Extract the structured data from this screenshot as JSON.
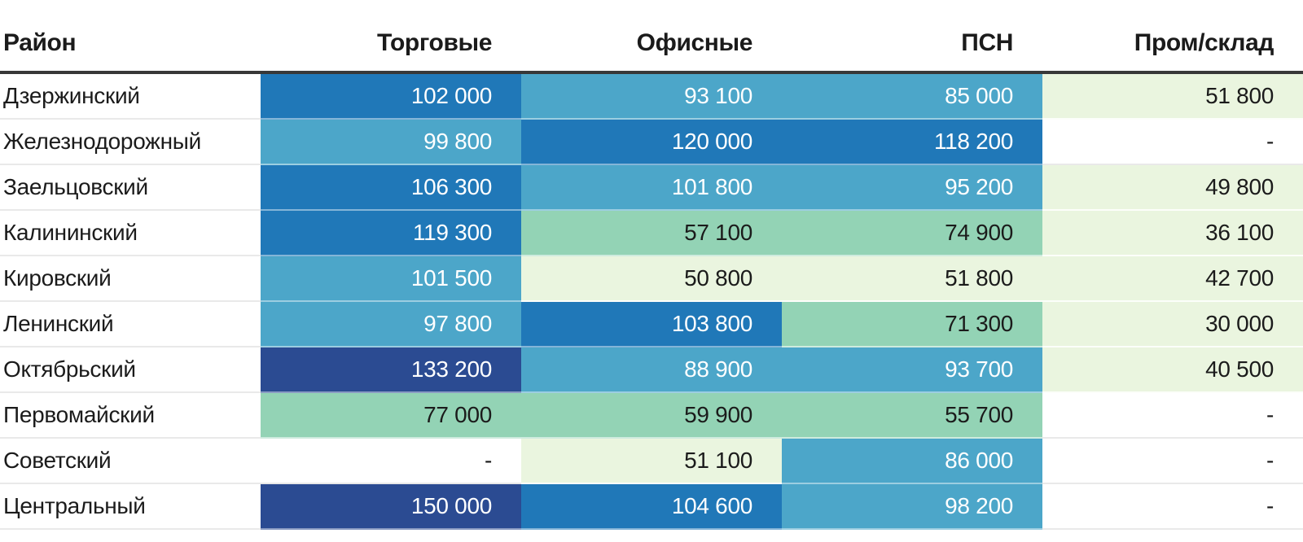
{
  "colors": {
    "navy": "#2b4b92",
    "dark_blue": "#2078b8",
    "mid_blue": "#4ca6c9",
    "green": "#93d3b5",
    "light_green": "#eaf5df",
    "header_border": "#383838",
    "row_divider": "#e9e9e9",
    "text_dark": "#1b1b1b",
    "text_light": "#ffffff"
  },
  "table": {
    "empty_value": "-",
    "columns": [
      {
        "key": "district",
        "label": "Район"
      },
      {
        "key": "retail",
        "label": "Торговые"
      },
      {
        "key": "office",
        "label": "Офисные"
      },
      {
        "key": "psn",
        "label": "ПСН"
      },
      {
        "key": "industrial",
        "label": "Пром/склад"
      }
    ],
    "rows": [
      {
        "district": "Дзержинский",
        "cells": [
          {
            "value": "102 000",
            "tone": "dark-blue"
          },
          {
            "value": "93 100",
            "tone": "mid-blue"
          },
          {
            "value": "85 000",
            "tone": "mid-blue"
          },
          {
            "value": "51 800",
            "tone": "light-green"
          }
        ]
      },
      {
        "district": "Железнодорожный",
        "cells": [
          {
            "value": "99 800",
            "tone": "mid-blue"
          },
          {
            "value": "120 000",
            "tone": "dark-blue"
          },
          {
            "value": "118 200",
            "tone": "dark-blue"
          },
          {
            "value": "-",
            "tone": "none"
          }
        ]
      },
      {
        "district": "Заельцовский",
        "cells": [
          {
            "value": "106 300",
            "tone": "dark-blue"
          },
          {
            "value": "101 800",
            "tone": "mid-blue"
          },
          {
            "value": "95 200",
            "tone": "mid-blue"
          },
          {
            "value": "49 800",
            "tone": "light-green"
          }
        ]
      },
      {
        "district": "Калининский",
        "cells": [
          {
            "value": "119 300",
            "tone": "dark-blue"
          },
          {
            "value": "57 100",
            "tone": "green"
          },
          {
            "value": "74 900",
            "tone": "green"
          },
          {
            "value": "36 100",
            "tone": "light-green"
          }
        ]
      },
      {
        "district": "Кировский",
        "cells": [
          {
            "value": "101 500",
            "tone": "mid-blue"
          },
          {
            "value": "50 800",
            "tone": "light-green"
          },
          {
            "value": "51 800",
            "tone": "light-green"
          },
          {
            "value": "42 700",
            "tone": "light-green"
          }
        ]
      },
      {
        "district": "Ленинский",
        "cells": [
          {
            "value": "97 800",
            "tone": "mid-blue"
          },
          {
            "value": "103 800",
            "tone": "dark-blue"
          },
          {
            "value": "71 300",
            "tone": "green"
          },
          {
            "value": "30 000",
            "tone": "light-green"
          }
        ]
      },
      {
        "district": "Октябрьский",
        "cells": [
          {
            "value": "133 200",
            "tone": "navy"
          },
          {
            "value": "88 900",
            "tone": "mid-blue"
          },
          {
            "value": "93 700",
            "tone": "mid-blue"
          },
          {
            "value": "40 500",
            "tone": "light-green"
          }
        ]
      },
      {
        "district": "Первомайский",
        "cells": [
          {
            "value": "77 000",
            "tone": "green"
          },
          {
            "value": "59 900",
            "tone": "green"
          },
          {
            "value": "55 700",
            "tone": "green"
          },
          {
            "value": "-",
            "tone": "none"
          }
        ]
      },
      {
        "district": "Советский",
        "cells": [
          {
            "value": "-",
            "tone": "none"
          },
          {
            "value": "51 100",
            "tone": "light-green"
          },
          {
            "value": "86 000",
            "tone": "mid-blue"
          },
          {
            "value": "-",
            "tone": "none"
          }
        ]
      },
      {
        "district": "Центральный",
        "cells": [
          {
            "value": "150 000",
            "tone": "navy"
          },
          {
            "value": "104 600",
            "tone": "dark-blue"
          },
          {
            "value": "98 200",
            "tone": "mid-blue"
          },
          {
            "value": "-",
            "tone": "none"
          }
        ]
      }
    ]
  },
  "chart_data": {
    "type": "heatmap",
    "title": "",
    "categories": [
      "Дзержинский",
      "Железнодорожный",
      "Заельцовский",
      "Калининский",
      "Кировский",
      "Ленинский",
      "Октябрьский",
      "Первомайский",
      "Советский",
      "Центральный"
    ],
    "series": [
      {
        "name": "Торговые",
        "values": [
          102000,
          99800,
          106300,
          119300,
          101500,
          97800,
          133200,
          77000,
          null,
          150000
        ]
      },
      {
        "name": "Офисные",
        "values": [
          93100,
          120000,
          101800,
          57100,
          50800,
          103800,
          88900,
          59900,
          51100,
          104600
        ]
      },
      {
        "name": "ПСН",
        "values": [
          85000,
          118200,
          95200,
          74900,
          51800,
          71300,
          93700,
          55700,
          86000,
          98200
        ]
      },
      {
        "name": "Пром/склад",
        "values": [
          51800,
          null,
          49800,
          36100,
          42700,
          30000,
          40500,
          null,
          null,
          null
        ]
      }
    ],
    "legend_position": "none",
    "grid": false,
    "color_scale_bins": [
      {
        "range_min": 30000,
        "range_max": 51800,
        "color": "#eaf5df"
      },
      {
        "range_min": 55700,
        "range_max": 77000,
        "color": "#93d3b5"
      },
      {
        "range_min": 85000,
        "range_max": 101800,
        "color": "#4ca6c9"
      },
      {
        "range_min": 102000,
        "range_max": 120000,
        "color": "#2078b8"
      },
      {
        "range_min": 133200,
        "range_max": 150000,
        "color": "#2b4b92"
      }
    ]
  }
}
